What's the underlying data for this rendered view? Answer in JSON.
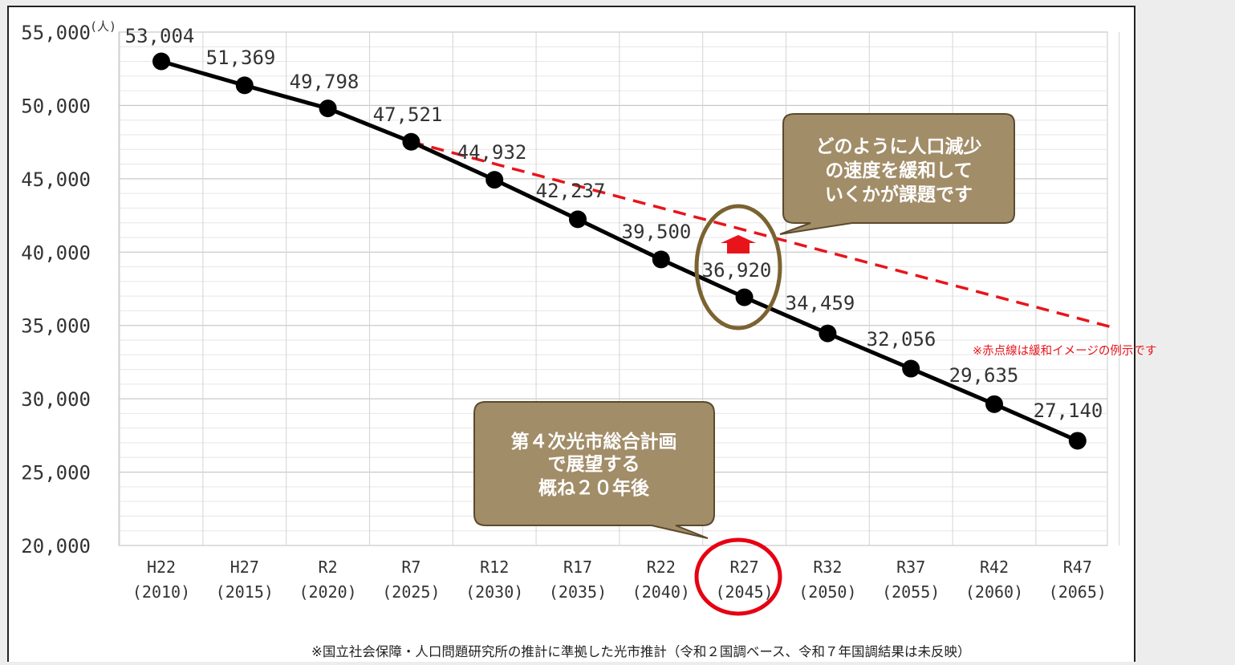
{
  "chart_data": {
    "type": "line",
    "unit": "(人)",
    "categories": [
      {
        "era": "H22",
        "year": "(2010)"
      },
      {
        "era": "H27",
        "year": "(2015)"
      },
      {
        "era": "R2",
        "year": "(2020)"
      },
      {
        "era": "R7",
        "year": "(2025)"
      },
      {
        "era": "R12",
        "year": "(2030)"
      },
      {
        "era": "R17",
        "year": "(2035)"
      },
      {
        "era": "R22",
        "year": "(2040)"
      },
      {
        "era": "R27",
        "year": "(2045)"
      },
      {
        "era": "R32",
        "year": "(2050)"
      },
      {
        "era": "R37",
        "year": "(2055)"
      },
      {
        "era": "R42",
        "year": "(2060)"
      },
      {
        "era": "R47",
        "year": "(2065)"
      }
    ],
    "values": [
      53004,
      51369,
      49798,
      47521,
      44932,
      42237,
      39500,
      36920,
      34459,
      32056,
      29635,
      27140
    ],
    "value_labels": [
      "53,004",
      "51,369",
      "49,798",
      "47,521",
      "44,932",
      "42,237",
      "39,500",
      "36,920",
      "34,459",
      "32,056",
      "29,635",
      "27,140"
    ],
    "y_ticks": [
      55000,
      50000,
      45000,
      40000,
      35000,
      30000,
      25000,
      20000
    ],
    "y_tick_labels": [
      "55,000",
      "50,000",
      "45,000",
      "40,000",
      "35,000",
      "30,000",
      "25,000",
      "20,000"
    ],
    "ylim": [
      20000,
      55000
    ],
    "grid": true,
    "mitigation_line": {
      "style": "dashed",
      "color": "#e8141b",
      "start": {
        "category_index": 3,
        "value": 47521
      },
      "end": {
        "category_index": 11.4,
        "value": 34900
      }
    }
  },
  "callouts": {
    "top": {
      "lines": [
        "どのように人口減少",
        "の速度を緩和して",
        "いくかが課題です"
      ]
    },
    "bottom": {
      "lines": [
        "第４次光市総合計画",
        "で展望する",
        "概ね２０年後"
      ]
    }
  },
  "notes": {
    "red_dashed": "※赤点線は緩和イメージの例示です",
    "source": "※国立社会保障・人口問題研究所の推計に準拠した光市推計（令和２国調ベース、令和７年国調結果は未反映）"
  },
  "colors": {
    "line": "#000000",
    "dashed": "#e8141b",
    "callout_fill": "#a28d69",
    "callout_stroke": "#5b4a2c",
    "highlight_ellipse": "#7a6330",
    "highlight_circle": "#e60012",
    "grid": "#d9d9d9"
  }
}
